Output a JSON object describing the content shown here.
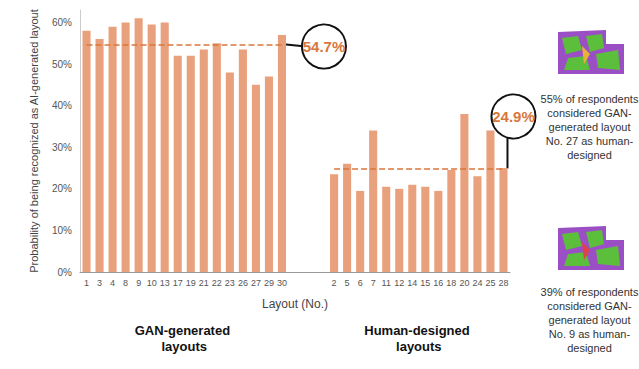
{
  "chart_data": {
    "type": "bar",
    "ylabel": "Probability of being recognized as AI-generated layout",
    "xlabel": "Layout (No.)",
    "categories": [
      "1",
      "3",
      "4",
      "8",
      "9",
      "10",
      "13",
      "17",
      "19",
      "21",
      "22",
      "23",
      "26",
      "27",
      "29",
      "30",
      null,
      null,
      null,
      "2",
      "5",
      "6",
      "7",
      "11",
      "12",
      "14",
      "15",
      "16",
      "18",
      "20",
      "24",
      "25",
      "28"
    ],
    "values": [
      58,
      56,
      59,
      60,
      61,
      59.5,
      60,
      52,
      52,
      53.5,
      55,
      48,
      53.5,
      45,
      47,
      57,
      null,
      null,
      null,
      23.5,
      26,
      19.5,
      34,
      20.5,
      20,
      21,
      20.5,
      19.5,
      24.5,
      38,
      23,
      34,
      25
    ],
    "color": "#e9a07c",
    "ylim": [
      0,
      63
    ],
    "yticks": [
      {
        "value": 0,
        "label": "0%"
      },
      {
        "value": 10,
        "label": "10%"
      },
      {
        "value": 20,
        "label": "20%"
      },
      {
        "value": 30,
        "label": "30%"
      },
      {
        "value": 40,
        "label": "40%"
      },
      {
        "value": 50,
        "label": "50%"
      },
      {
        "value": 60,
        "label": "60%"
      }
    ],
    "grid": false,
    "groups": [
      {
        "label": "GAN-generated layouts",
        "start": "1",
        "end": "30",
        "mean": 54.7,
        "mean_label": "54.7%"
      },
      {
        "label": "Human-designed layouts",
        "start": "2",
        "end": "28",
        "mean": 24.9,
        "mean_label": "24.9%"
      }
    ],
    "annotations": [
      "55% of respondents considered GAN-generated layout No. 27 as human-designed",
      "39% of respondents considered GAN-generated layout No. 9 as human-designed"
    ]
  }
}
